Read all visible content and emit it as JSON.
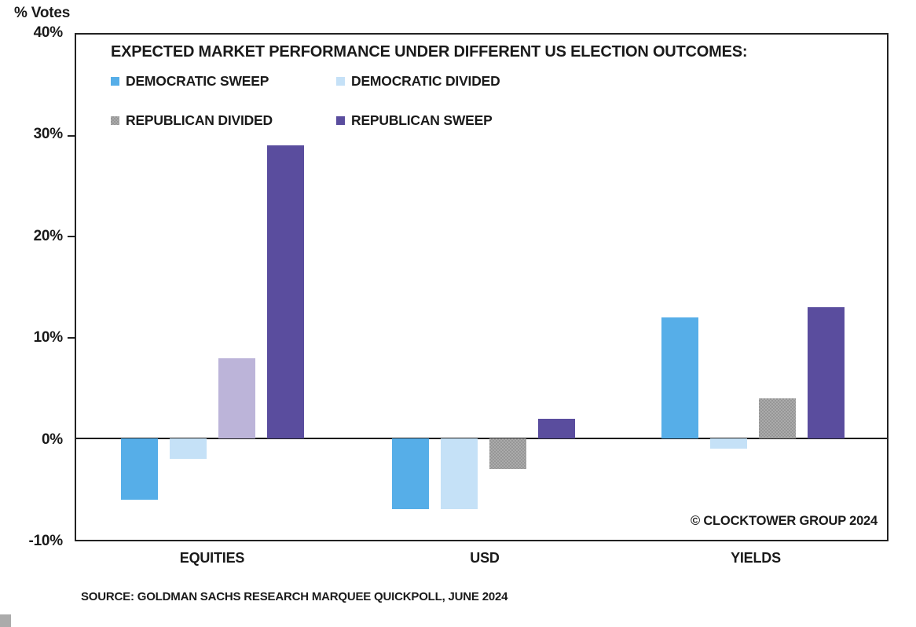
{
  "axis": {
    "unit_label": "% Votes",
    "yticks": [
      "40%",
      "30%",
      "20%",
      "10%",
      "0%",
      "-10%"
    ]
  },
  "chart_data": {
    "type": "bar",
    "title": "EXPECTED MARKET PERFORMANCE UNDER DIFFERENT US ELECTION OUTCOMES:",
    "categories": [
      "EQUITIES",
      "USD",
      "YIELDS"
    ],
    "series": [
      {
        "name": "DEMOCRATIC SWEEP",
        "color": "#56aee8",
        "textured": false,
        "values": [
          -6,
          -7,
          12
        ]
      },
      {
        "name": "DEMOCRATIC DIVIDED",
        "color": "#c5e1f7",
        "textured": false,
        "values": [
          -2,
          -7,
          -1
        ]
      },
      {
        "name": "REPUBLICAN DIVIDED",
        "color": "#ababab",
        "textured": true,
        "values": [
          8,
          -3,
          4
        ]
      },
      {
        "name": "REPUBLICAN SWEEP",
        "color": "#5a4d9e",
        "textured": false,
        "values": [
          29,
          2,
          13
        ]
      }
    ],
    "bar_overrides": [
      {
        "category": 0,
        "series": 2,
        "color": "#bcb4d9",
        "textured": false
      }
    ],
    "ylim": [
      -10,
      40
    ],
    "ytick_step": 10,
    "ylabel": "% Votes",
    "xlabel": "",
    "grid": false,
    "legend_position": "top-left-inside",
    "colors": {
      "democratic_sweep": "#56aee8",
      "democratic_divided": "#c5e1f7",
      "republican_divided_gray": "#ababab",
      "republican_divided_equities_lavender": "#bcb4d9",
      "republican_sweep": "#5a4d9e",
      "axis_black": "#1a1a1a"
    }
  },
  "annotations": {
    "copyright": "© CLOCKTOWER GROUP 2024",
    "source": "SOURCE: GOLDMAN SACHS RESEARCH MARQUEE QUICKPOLL, JUNE 2024"
  }
}
